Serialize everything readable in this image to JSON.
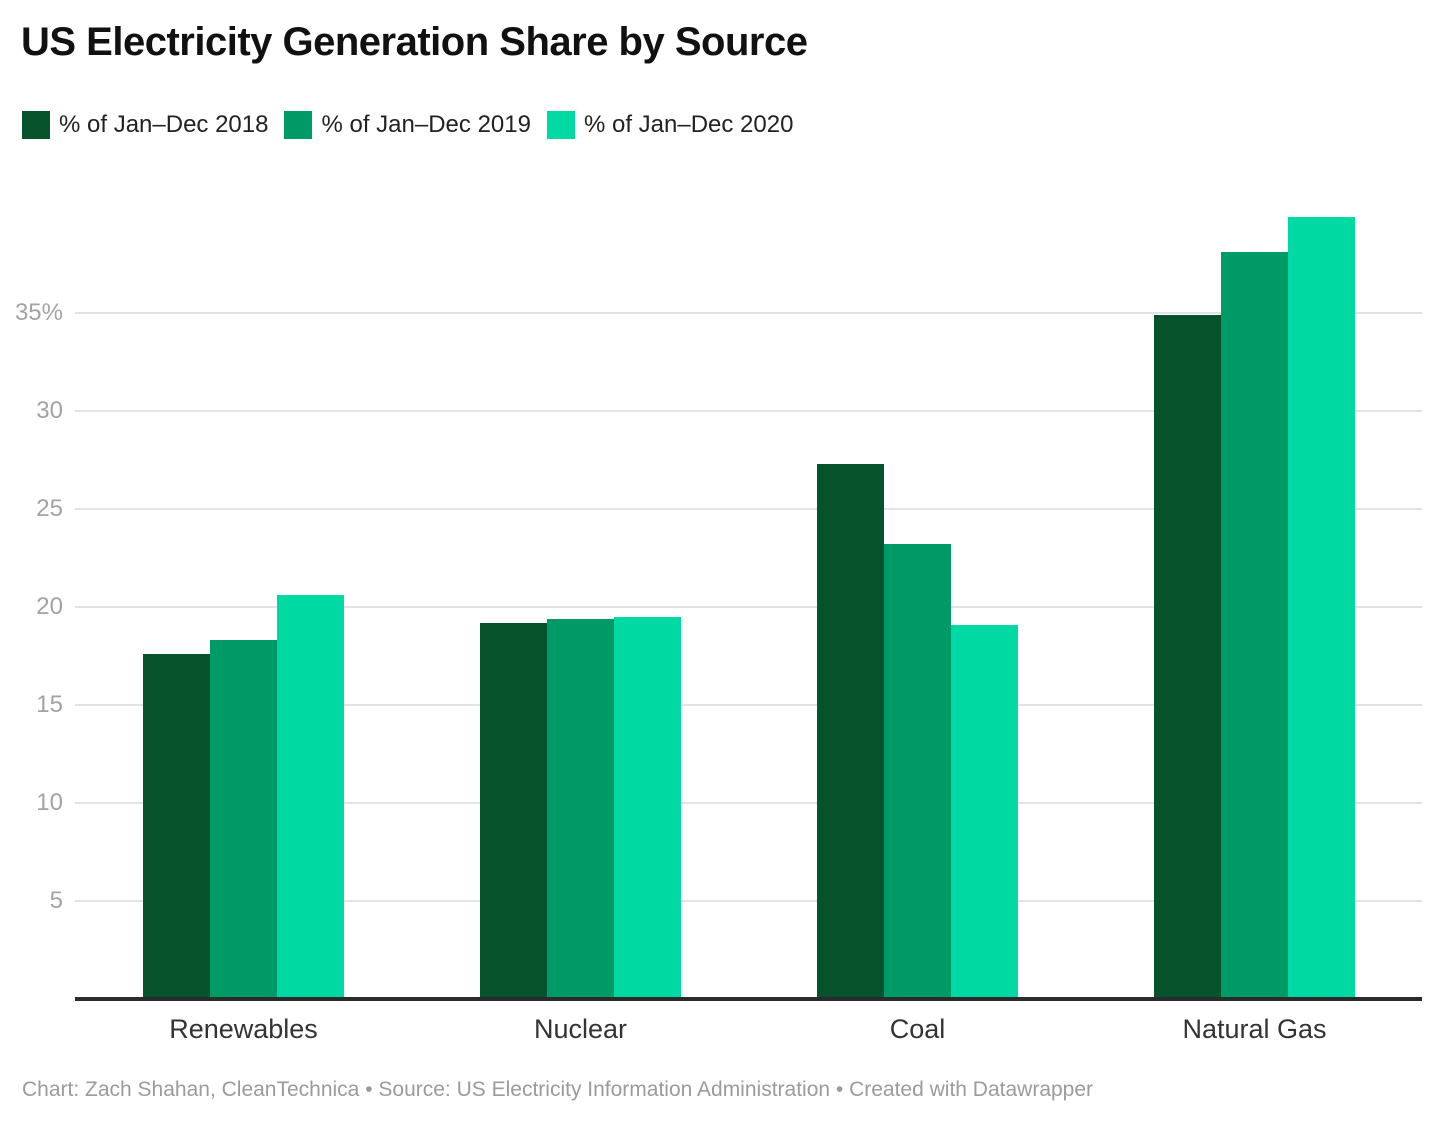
{
  "title": "US Electricity Generation Share by Source",
  "footer": {
    "text": "Chart: Zach Shahan, CleanTechnica • Source: US Electricity Information Administration • Created with Datawrapper"
  },
  "colors": {
    "series_2018": "#05522B",
    "series_2019": "#009A66",
    "series_2020": "#00DAA2",
    "gridline": "#e3e3e3",
    "axis_line": "#2b2b2b",
    "y_tick_text": "#a3a3a3",
    "category_text": "#333333",
    "footer_text": "#9b9b9b",
    "title_text": "#111111"
  },
  "chart_data": {
    "type": "bar",
    "title": "US Electricity Generation Share by Source",
    "categories": [
      "Renewables",
      "Nuclear",
      "Coal",
      "Natural Gas"
    ],
    "series": [
      {
        "name": "% of Jan–Dec 2018",
        "color": "#05522B",
        "values": [
          17.6,
          19.2,
          27.3,
          34.9
        ]
      },
      {
        "name": "% of Jan–Dec 2019",
        "color": "#009A66",
        "values": [
          18.3,
          19.4,
          23.2,
          38.1
        ]
      },
      {
        "name": "% of Jan–Dec 2020",
        "color": "#00DAA2",
        "values": [
          20.6,
          19.5,
          19.1,
          39.9
        ]
      }
    ],
    "xlabel": "",
    "ylabel": "",
    "ylim": [
      0,
      41
    ],
    "yticks": [
      {
        "value": 5,
        "label": "5"
      },
      {
        "value": 10,
        "label": "10"
      },
      {
        "value": 15,
        "label": "15"
      },
      {
        "value": 20,
        "label": "20"
      },
      {
        "value": 25,
        "label": "25"
      },
      {
        "value": 30,
        "label": "30"
      },
      {
        "value": 35,
        "label": "35%"
      }
    ],
    "grid": "horizontal",
    "legend_position": "top"
  }
}
